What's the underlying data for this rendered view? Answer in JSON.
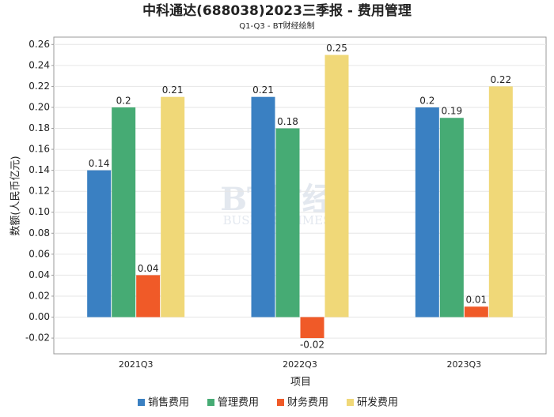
{
  "chart_data": {
    "type": "bar",
    "title": "中科通达(688038)2023三季报 - 费用管理",
    "subtitle": "Q1-Q3 - BT财经绘制",
    "watermark": [
      "BT财经",
      "BUSINESSTIMES"
    ],
    "xlabel": "项目",
    "ylabel": "数额(人民币亿元)",
    "categories": [
      "2021Q3",
      "2022Q3",
      "2023Q3"
    ],
    "series": [
      {
        "name": "销售费用",
        "color": "#3a80c2",
        "values": [
          0.14,
          0.21,
          0.2
        ]
      },
      {
        "name": "管理费用",
        "color": "#46ab74",
        "values": [
          0.2,
          0.18,
          0.19
        ]
      },
      {
        "name": "财务费用",
        "color": "#f05a28",
        "values": [
          0.04,
          -0.02,
          0.01
        ]
      },
      {
        "name": "研发费用",
        "color": "#f0d878",
        "values": [
          0.21,
          0.25,
          0.22
        ]
      }
    ],
    "ylim": [
      -0.035,
      0.267
    ],
    "yticks": [
      -0.02,
      {
        "value": 0,
        "label": "0.00"
      },
      0.02,
      0.04,
      0.06,
      0.08,
      {
        "value": 0.1,
        "label": "0.10"
      },
      0.12,
      0.14,
      0.16,
      0.18,
      {
        "value": 0.2,
        "label": "0.20"
      },
      0.22,
      0.24,
      0.26
    ],
    "grid": true,
    "legend": "bottom"
  }
}
